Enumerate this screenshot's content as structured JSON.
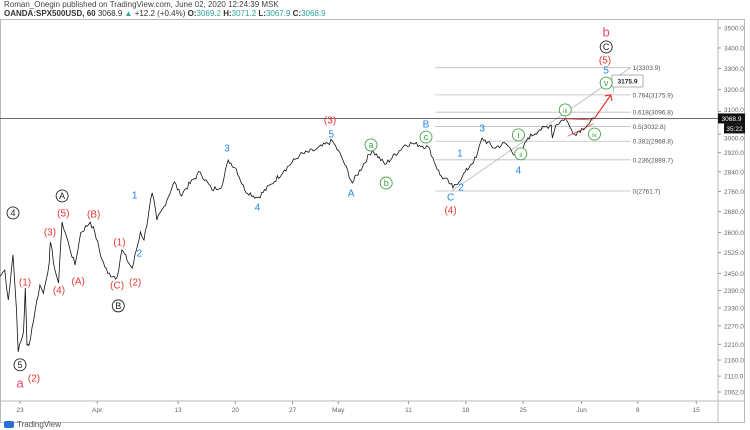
{
  "header": {
    "publisher_line": "Roman_Onegin published on TradingView.com, June 02, 2020 12:24:39 MSK",
    "symbol": "OANDA:SPX500USD, 60",
    "last": "3068.9",
    "change": "+12.2 (+0.4%)",
    "open_label": "O:",
    "open": "3069.2",
    "high_label": "H:",
    "high": "3071.2",
    "low_label": "L:",
    "low": "3067.9",
    "close_label": "C:",
    "close": "3068.9"
  },
  "footer": {
    "brand": "TradingView"
  },
  "colors": {
    "red": "#e53935",
    "blue": "#1e88e5",
    "green": "#43a047",
    "black": "#222222",
    "pink": "#ec407a",
    "price_line": "#555555"
  },
  "chart_data": {
    "type": "line",
    "title": "OANDA:SPX500USD, 60",
    "scale": "log",
    "ylim": [
      2062,
      3500
    ],
    "y_ticks": [
      "3500.0",
      "3400.0",
      "3300.0",
      "3200.0",
      "3100.0",
      "3000.0",
      "2920.0",
      "2840.0",
      "2760.0",
      "2680.0",
      "2600.0",
      "2525.0",
      "2450.0",
      "2390.0",
      "2330.0",
      "2270.0",
      "2210.0",
      "2160.0",
      "2110.0",
      "2062.0"
    ],
    "x_ticks": [
      {
        "label": "23",
        "t": 0
      },
      {
        "label": "Apr",
        "t": 6.6
      },
      {
        "label": "13",
        "t": 13.5
      },
      {
        "label": "20",
        "t": 18.4
      },
      {
        "label": "27",
        "t": 23.3
      },
      {
        "label": "May",
        "t": 27.2
      },
      {
        "label": "11",
        "t": 33.2
      },
      {
        "label": "18",
        "t": 38.1
      },
      {
        "label": "25",
        "t": 43
      },
      {
        "label": "Jun",
        "t": 48
      },
      {
        "label": "8",
        "t": 52.8
      },
      {
        "label": "15",
        "t": 57.8
      }
    ],
    "x_unit": "trading days since Mar 23",
    "series": [
      {
        "name": "SPX500USD",
        "points": [
          [
            -1.7,
            2440
          ],
          [
            -1.3,
            2462
          ],
          [
            -1.0,
            2357
          ],
          [
            -0.6,
            2517
          ],
          [
            -0.3,
            2323
          ],
          [
            -0.15,
            2186
          ],
          [
            0.3,
            2250
          ],
          [
            0.45,
            2399
          ],
          [
            0.6,
            2208
          ],
          [
            0.75,
            2206
          ],
          [
            1.3,
            2323
          ],
          [
            1.7,
            2409
          ],
          [
            2.0,
            2380
          ],
          [
            2.5,
            2491
          ],
          [
            2.6,
            2564
          ],
          [
            3.0,
            2460
          ],
          [
            3.3,
            2416
          ],
          [
            3.6,
            2640
          ],
          [
            4.2,
            2550
          ],
          [
            4.7,
            2480
          ],
          [
            5.2,
            2600
          ],
          [
            6.0,
            2640
          ],
          [
            6.4,
            2600
          ],
          [
            7.0,
            2500
          ],
          [
            7.5,
            2450
          ],
          [
            8.3,
            2437
          ],
          [
            8.7,
            2535
          ],
          [
            9.4,
            2480
          ],
          [
            9.6,
            2469
          ],
          [
            10.3,
            2602
          ],
          [
            10.6,
            2572
          ],
          [
            11.3,
            2754
          ],
          [
            11.7,
            2648
          ],
          [
            12.3,
            2700
          ],
          [
            13.2,
            2798
          ],
          [
            13.7,
            2746
          ],
          [
            15.4,
            2839
          ],
          [
            16.4,
            2766
          ],
          [
            17.3,
            2786
          ],
          [
            17.8,
            2889
          ],
          [
            18.5,
            2850
          ],
          [
            19.2,
            2766
          ],
          [
            20.3,
            2734
          ],
          [
            21.5,
            2790
          ],
          [
            22.6,
            2847
          ],
          [
            23.9,
            2910
          ],
          [
            25.2,
            2931
          ],
          [
            26.7,
            2970
          ],
          [
            27.5,
            2900
          ],
          [
            28.4,
            2794
          ],
          [
            30.1,
            2931
          ],
          [
            31.2,
            2870
          ],
          [
            32.9,
            2953
          ],
          [
            33.5,
            2960
          ],
          [
            34.9,
            2944
          ],
          [
            35.9,
            2827
          ],
          [
            36.8,
            2790
          ],
          [
            37.0,
            2774
          ],
          [
            37.8,
            2820
          ],
          [
            38.5,
            2868
          ],
          [
            39.0,
            2900
          ],
          [
            39.5,
            2983
          ],
          [
            40.5,
            2940
          ],
          [
            41.5,
            2960
          ],
          [
            42.6,
            2897
          ],
          [
            43.4,
            2983
          ],
          [
            44.4,
            3018
          ],
          [
            45.4,
            3040
          ],
          [
            45.5,
            2983
          ],
          [
            45.8,
            3040
          ],
          [
            46.6,
            3071
          ],
          [
            47.0,
            3030
          ],
          [
            47.4,
            3000
          ],
          [
            48.5,
            3040
          ],
          [
            49.1,
            3068.9
          ]
        ]
      }
    ],
    "current_price": {
      "label": "3068.9",
      "countdown": "35:22",
      "value": 3068.9
    },
    "fib_levels": [
      {
        "label": "1(3303.9)",
        "value": 3303.9
      },
      {
        "label": "0.764(3175.9)",
        "value": 3175.9
      },
      {
        "label": "0.618(3096.8)",
        "value": 3096.8
      },
      {
        "label": "0.5(3032.8)",
        "value": 3032.8
      },
      {
        "label": "0.382(2968.8)",
        "value": 2968.8
      },
      {
        "label": "0.236(2889.7)",
        "value": 2889.7
      },
      {
        "label": "0(2761.7)",
        "value": 2761.7
      }
    ],
    "fib_range_t": [
      35.5,
      58
    ],
    "trendline": [
      [
        36.9,
        2761.7
      ],
      [
        58,
        3303.9
      ]
    ],
    "projection": {
      "from": [
        49.1,
        3068.9
      ],
      "to": [
        50.5,
        3175.9
      ],
      "label": "3175.9"
    },
    "annotations": [
      {
        "text": "4",
        "color": "black",
        "circled": true,
        "t": -0.6,
        "p": 2675
      },
      {
        "text": "(1)",
        "color": "red",
        "circled": false,
        "t": 0.43,
        "p": 2420
      },
      {
        "text": "5",
        "color": "black",
        "circled": true,
        "t": 0,
        "p": 2145
      },
      {
        "text": "(2)",
        "color": "red",
        "circled": false,
        "t": 0.94,
        "p": 2105
      },
      {
        "text": "a",
        "color": "pink",
        "circled": false,
        "t": 0,
        "p": 2009
      },
      {
        "text": "A",
        "color": "black",
        "circled": true,
        "t": 3.6,
        "p": 2742
      },
      {
        "text": "(5)",
        "color": "red",
        "circled": false,
        "t": 3.7,
        "p": 2675
      },
      {
        "text": "(3)",
        "color": "red",
        "circled": false,
        "t": 2.56,
        "p": 2602
      },
      {
        "text": "(4)",
        "color": "red",
        "circled": false,
        "t": 3.33,
        "p": 2392
      },
      {
        "text": "(A)",
        "color": "red",
        "circled": false,
        "t": 4.8,
        "p": 2423
      },
      {
        "text": "(B)",
        "color": "red",
        "circled": false,
        "t": 6.3,
        "p": 2671
      },
      {
        "text": "(1)",
        "color": "red",
        "circled": false,
        "t": 8.5,
        "p": 2564
      },
      {
        "text": "(C)",
        "color": "red",
        "circled": false,
        "t": 8.3,
        "p": 2409
      },
      {
        "text": "(2)",
        "color": "red",
        "circled": false,
        "t": 9.5,
        "p": 2420
      },
      {
        "text": "B",
        "color": "black",
        "circled": true,
        "t": 8.4,
        "p": 2337
      },
      {
        "text": "1",
        "color": "blue",
        "circled": false,
        "t": 9.8,
        "p": 2746
      },
      {
        "text": "2",
        "color": "blue",
        "circled": false,
        "t": 10.2,
        "p": 2524
      },
      {
        "text": "3",
        "color": "blue",
        "circled": false,
        "t": 17.7,
        "p": 2940
      },
      {
        "text": "4",
        "color": "blue",
        "circled": false,
        "t": 20.3,
        "p": 2698
      },
      {
        "text": "(3)",
        "color": "red",
        "circled": false,
        "t": 26.5,
        "p": 3044
      },
      {
        "text": "5",
        "color": "blue",
        "circled": false,
        "t": 26.6,
        "p": 3008
      },
      {
        "text": "A",
        "color": "blue",
        "circled": false,
        "t": 28.3,
        "p": 2754
      },
      {
        "text": "a",
        "color": "green",
        "circled": true,
        "t": 30,
        "p": 2953
      },
      {
        "text": "b",
        "color": "green",
        "circled": true,
        "t": 31.3,
        "p": 2794
      },
      {
        "text": "B",
        "color": "blue",
        "circled": false,
        "t": 34.7,
        "p": 3044
      },
      {
        "text": "c",
        "color": "green",
        "circled": true,
        "t": 34.7,
        "p": 2987
      },
      {
        "text": "1",
        "color": "blue",
        "circled": false,
        "t": 37.6,
        "p": 2919
      },
      {
        "text": "2",
        "color": "blue",
        "circled": false,
        "t": 37.7,
        "p": 2778
      },
      {
        "text": "C",
        "color": "blue",
        "circled": false,
        "t": 36.8,
        "p": 2738
      },
      {
        "text": "(4)",
        "color": "red",
        "circled": false,
        "t": 36.8,
        "p": 2687
      },
      {
        "text": "3",
        "color": "blue",
        "circled": false,
        "t": 39.5,
        "p": 3026
      },
      {
        "text": "i",
        "color": "green",
        "circled": true,
        "t": 42.6,
        "p": 2996
      },
      {
        "text": "ii",
        "color": "green",
        "circled": true,
        "t": 42.8,
        "p": 2915
      },
      {
        "text": "4",
        "color": "blue",
        "circled": false,
        "t": 42.6,
        "p": 2872
      },
      {
        "text": "iii",
        "color": "green",
        "circled": true,
        "t": 46.6,
        "p": 3107
      },
      {
        "text": "iv",
        "color": "green",
        "circled": true,
        "t": 49.1,
        "p": 3000
      },
      {
        "text": "v",
        "color": "green",
        "circled": true,
        "t": 50.1,
        "p": 3231
      },
      {
        "text": "5",
        "color": "blue",
        "circled": false,
        "t": 50.1,
        "p": 3293
      },
      {
        "text": "(5)",
        "color": "red",
        "circled": false,
        "t": 50,
        "p": 3341
      },
      {
        "text": "C",
        "color": "black",
        "circled": true,
        "t": 50.1,
        "p": 3405
      },
      {
        "text": "b",
        "color": "pink",
        "circled": false,
        "t": 50.1,
        "p": 3475
      }
    ]
  }
}
